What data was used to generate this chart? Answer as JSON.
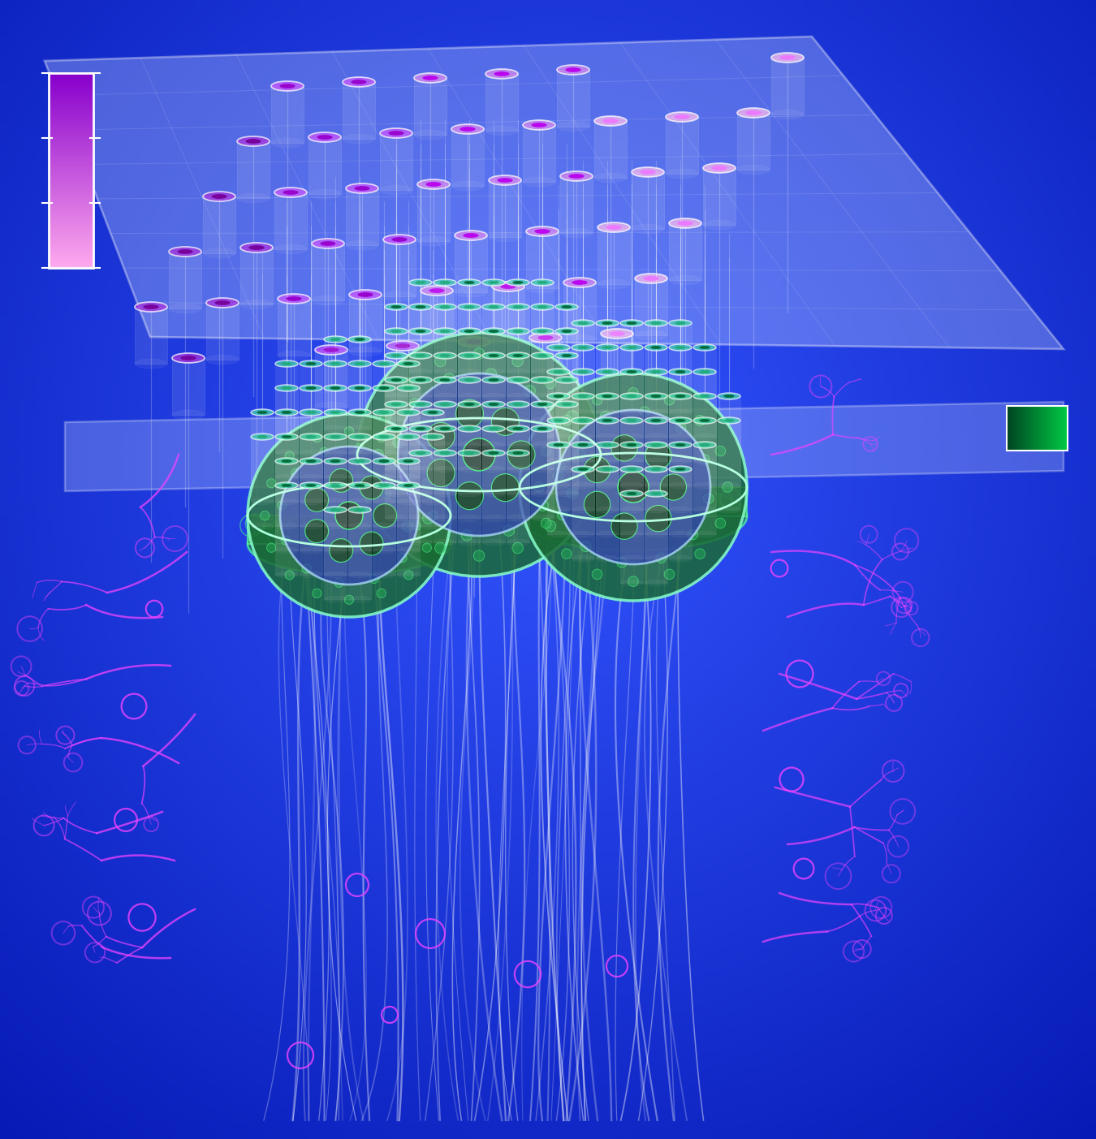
{
  "bg_color": "#1a35ee",
  "bg_color2": "#0022cc",
  "upper_plane_fill": "#c8d8ff",
  "upper_plane_alpha": 0.32,
  "lower_plane_fill": "#c8d8ff",
  "lower_plane_alpha": 0.28,
  "tube_rim_pink1": "#ffaaee",
  "tube_dot_purple1": "#cc44ff",
  "tube_rim_pink2": "#ee88dd",
  "tube_dot_purple2": "#9900bb",
  "tube_rim_purple3": "#cc55ff",
  "tube_dot_purple3": "#6600aa",
  "tube_teal_rim": "#44ddaa",
  "tube_teal_dark": "#006633",
  "tube_teal_mid": "#22aa77",
  "root_cell_green": "#33bb66",
  "root_bg_blue": "#2244aa",
  "root_border": "#88ffcc",
  "root_cell_border": "#55ff88",
  "root_inner_dark": "#005522",
  "myco_color": "#ee44ff",
  "filament_color": "#ffffff",
  "legend_purple_top": "#cc00ff",
  "legend_pink_bot": "#ff99ee",
  "green_bar_left": "#004422",
  "green_bar_right": "#00cc66",
  "white": "#ffffff"
}
